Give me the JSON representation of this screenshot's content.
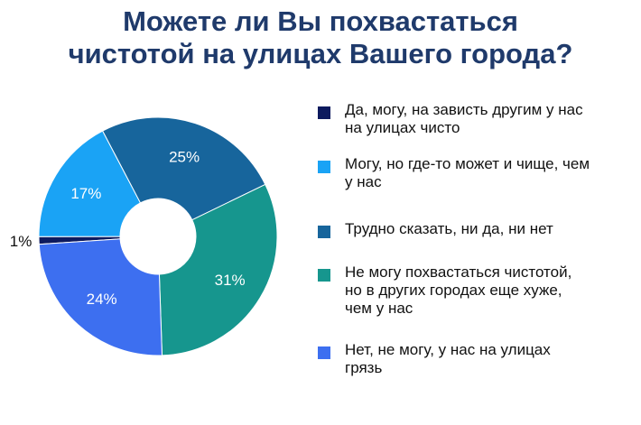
{
  "title": {
    "line1": "Можете ли Вы похвастаться",
    "line2": "чистотой на улицах Вашего города?"
  },
  "chart_data": {
    "type": "pie",
    "donut": true,
    "categories": [
      "Да, могу, на зависть другим у нас на улицах чисто",
      "Могу, но где-то может и чище, чем у нас",
      "Трудно сказать, ни да, ни нет",
      "Не могу похвастаться чистотой, но в других городах еще хуже, чем у нас",
      "Нет, не могу, у нас на улицах грязь"
    ],
    "values": [
      1,
      17,
      25,
      31,
      24
    ],
    "value_labels": [
      "1%",
      "17%",
      "25%",
      "31%",
      "24%"
    ],
    "colors": [
      "#0d1a5e",
      "#1aa3f5",
      "#17659c",
      "#16968e",
      "#3d6ff0"
    ],
    "legend_position": "right"
  },
  "legend": [
    {
      "lines": [
        "Да, могу, на зависть другим у нас",
        "на улицах чисто"
      ],
      "color": "#0d1a5e"
    },
    {
      "lines": [
        "Могу, но где-то может и чище, чем",
        "у нас"
      ],
      "color": "#1aa3f5"
    },
    {
      "lines": [
        "Трудно сказать, ни да, ни нет"
      ],
      "color": "#17659c"
    },
    {
      "lines": [
        "Не могу похвастаться чистотой,",
        "но в других городах еще хуже,",
        "чем у нас"
      ],
      "color": "#16968e"
    },
    {
      "lines": [
        "Нет, не могу, у нас на улицах",
        "грязь"
      ],
      "color": "#3d6ff0"
    }
  ]
}
